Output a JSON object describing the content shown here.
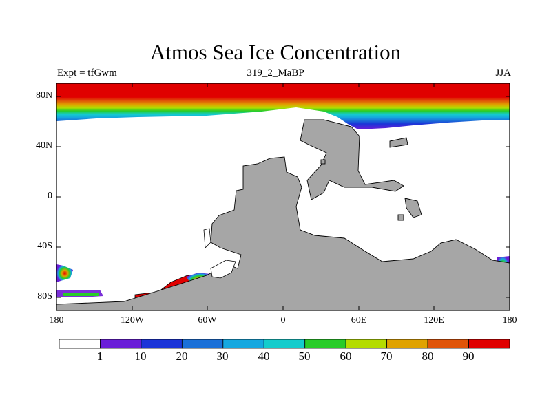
{
  "title": "Atmos Sea Ice Concentration",
  "left_string": "Expt = tfGwm",
  "center_string": "319_2_MaBP",
  "right_string": "JJA",
  "y_ticks": [
    {
      "label": "80N",
      "lat": 80
    },
    {
      "label": "40N",
      "lat": 40
    },
    {
      "label": "0",
      "lat": 0
    },
    {
      "label": "40S",
      "lat": -40
    },
    {
      "label": "80S",
      "lat": -80
    }
  ],
  "x_ticks": [
    {
      "label": "180",
      "lon": -180
    },
    {
      "label": "120W",
      "lon": -120
    },
    {
      "label": "60W",
      "lon": -60
    },
    {
      "label": "0",
      "lon": 0
    },
    {
      "label": "60E",
      "lon": 60
    },
    {
      "label": "120E",
      "lon": 120
    },
    {
      "label": "180",
      "lon": 180
    }
  ],
  "colorbar": {
    "levels": [
      "1",
      "10",
      "20",
      "30",
      "40",
      "50",
      "60",
      "70",
      "80",
      "90"
    ],
    "colors": [
      "#ffffff",
      "#6a1ed8",
      "#1b34d8",
      "#1a70d8",
      "#15a8e0",
      "#14cccc",
      "#28cc28",
      "#b4dc00",
      "#e0a200",
      "#e05408",
      "#e00000"
    ]
  },
  "land_color": "#a6a6a6"
}
